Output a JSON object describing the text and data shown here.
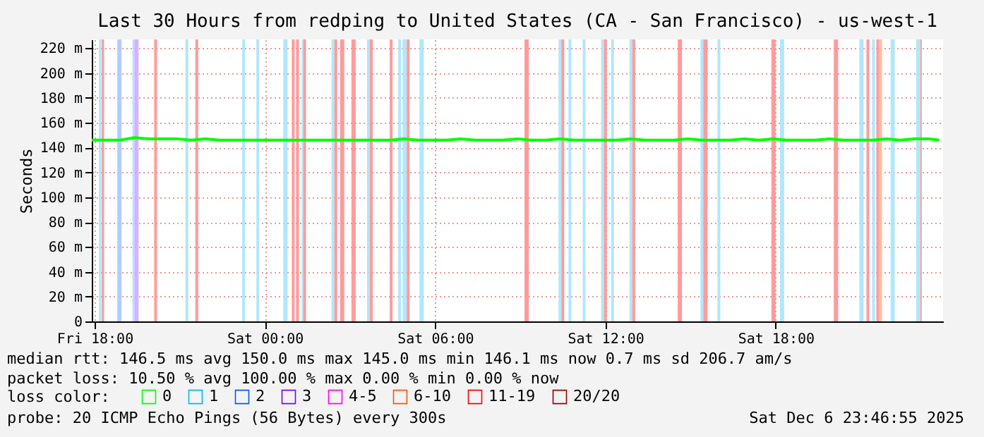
{
  "chart_data": {
    "type": "line",
    "title": "Last 30 Hours from redping to United States (CA - San Francisco) - us-west-1",
    "ylabel": "Seconds",
    "x": [
      "2025-12-05T17:54",
      "2025-12-05T18:24",
      "2025-12-05T18:54",
      "2025-12-05T19:24",
      "2025-12-05T19:54",
      "2025-12-05T20:24",
      "2025-12-05T20:54",
      "2025-12-05T21:24",
      "2025-12-05T21:54",
      "2025-12-05T22:24",
      "2025-12-05T22:54",
      "2025-12-05T23:24",
      "2025-12-05T23:54",
      "2025-12-06T00:24",
      "2025-12-06T00:54",
      "2025-12-06T01:24",
      "2025-12-06T01:54",
      "2025-12-06T02:24",
      "2025-12-06T02:54",
      "2025-12-06T03:24",
      "2025-12-06T03:54",
      "2025-12-06T04:24",
      "2025-12-06T04:54",
      "2025-12-06T05:24",
      "2025-12-06T05:54",
      "2025-12-06T06:24",
      "2025-12-06T06:54",
      "2025-12-06T07:24",
      "2025-12-06T07:54",
      "2025-12-06T08:24",
      "2025-12-06T08:54",
      "2025-12-06T09:24",
      "2025-12-06T09:54",
      "2025-12-06T10:24",
      "2025-12-06T10:54",
      "2025-12-06T11:24",
      "2025-12-06T11:54",
      "2025-12-06T12:24",
      "2025-12-06T12:54",
      "2025-12-06T13:24",
      "2025-12-06T13:54",
      "2025-12-06T14:24",
      "2025-12-06T14:54",
      "2025-12-06T15:24",
      "2025-12-06T15:54",
      "2025-12-06T16:24",
      "2025-12-06T16:54",
      "2025-12-06T17:24",
      "2025-12-06T17:54",
      "2025-12-06T18:24",
      "2025-12-06T18:54",
      "2025-12-06T19:24",
      "2025-12-06T19:54",
      "2025-12-06T20:24",
      "2025-12-06T20:54",
      "2025-12-06T21:24",
      "2025-12-06T21:54",
      "2025-12-06T22:24",
      "2025-12-06T22:54",
      "2025-12-06T23:24",
      "2025-12-06T23:46"
    ],
    "series": [
      {
        "name": "0",
        "color": "#00ff00",
        "values": [
          146,
          146,
          146,
          148,
          147,
          147,
          147,
          146,
          147,
          146,
          146,
          146,
          146,
          146,
          146,
          146,
          146,
          146,
          146,
          146,
          146,
          146,
          147,
          146,
          146,
          146,
          147,
          146,
          146,
          146,
          147,
          146,
          146,
          147,
          146,
          146,
          146,
          146,
          147,
          146,
          146,
          146,
          147,
          146,
          146,
          146,
          147,
          146,
          147,
          146,
          146,
          146,
          147,
          146,
          146,
          146,
          147,
          146,
          147,
          147,
          146
        ]
      },
      {
        "name": "1",
        "color": "#00b8ff",
        "values": [
          null,
          null,
          null,
          null,
          null,
          null,
          null,
          null,
          null,
          null,
          null,
          null,
          null,
          null,
          null,
          null,
          null,
          null,
          null,
          null,
          null,
          null,
          null,
          null,
          null,
          null,
          null,
          null,
          null,
          null,
          null,
          null,
          null,
          null,
          null,
          null,
          null,
          null,
          null,
          null,
          null,
          null,
          null,
          null,
          null,
          null,
          null,
          null,
          null,
          null,
          null,
          null,
          null,
          null,
          null,
          null,
          null,
          null,
          null,
          null,
          null
        ]
      },
      {
        "name": "2",
        "color": "#0059ff",
        "values": [
          null,
          null,
          null,
          null,
          null,
          null,
          null,
          null,
          null,
          null,
          null,
          null,
          null,
          null,
          null,
          null,
          null,
          null,
          null,
          null,
          null,
          null,
          null,
          null,
          null,
          null,
          null,
          null,
          null,
          null,
          null,
          null,
          null,
          null,
          null,
          null,
          null,
          null,
          null,
          null,
          null,
          null,
          null,
          null,
          null,
          null,
          null,
          null,
          null,
          null,
          null,
          null,
          null,
          null,
          null,
          null,
          null,
          null,
          null,
          null,
          null
        ]
      },
      {
        "name": "3",
        "color": "#7e00ff",
        "values": [
          null,
          null,
          null,
          null,
          null,
          null,
          null,
          null,
          null,
          null,
          null,
          null,
          null,
          null,
          null,
          null,
          null,
          null,
          null,
          null,
          null,
          null,
          null,
          null,
          null,
          null,
          null,
          null,
          null,
          null,
          null,
          null,
          null,
          null,
          null,
          null,
          null,
          null,
          null,
          null,
          null,
          null,
          null,
          null,
          null,
          null,
          null,
          null,
          null,
          null,
          null,
          null,
          null,
          null,
          null,
          null,
          null,
          null,
          null,
          null,
          null
        ]
      },
      {
        "name": "4-5",
        "color": "#ff00ff",
        "values": [
          null,
          null,
          null,
          null,
          null,
          null,
          null,
          null,
          null,
          null,
          null,
          null,
          null,
          null,
          null,
          null,
          null,
          null,
          null,
          null,
          null,
          null,
          null,
          null,
          null,
          null,
          null,
          null,
          null,
          null,
          null,
          null,
          null,
          null,
          null,
          null,
          null,
          null,
          null,
          null,
          null,
          null,
          null,
          null,
          null,
          null,
          null,
          null,
          null,
          null,
          null,
          null,
          null,
          null,
          null,
          null,
          null,
          null,
          null,
          null,
          null
        ]
      },
      {
        "name": "6-10",
        "color": "#ff5500",
        "values": [
          null,
          null,
          null,
          null,
          null,
          null,
          null,
          null,
          null,
          null,
          null,
          null,
          null,
          null,
          null,
          null,
          null,
          null,
          null,
          null,
          null,
          null,
          null,
          null,
          null,
          null,
          null,
          null,
          null,
          null,
          null,
          null,
          null,
          null,
          null,
          null,
          null,
          null,
          null,
          null,
          null,
          null,
          null,
          null,
          null,
          null,
          null,
          null,
          null,
          null,
          null,
          null,
          null,
          null,
          null,
          null,
          null,
          null,
          null,
          null,
          null
        ]
      },
      {
        "name": "11-19",
        "color": "#ff0000",
        "values": [
          null,
          null,
          null,
          null,
          null,
          null,
          null,
          null,
          null,
          null,
          null,
          null,
          null,
          null,
          null,
          null,
          null,
          null,
          null,
          null,
          null,
          null,
          null,
          null,
          null,
          null,
          null,
          null,
          null,
          null,
          null,
          null,
          null,
          null,
          null,
          null,
          null,
          null,
          null,
          null,
          null,
          null,
          null,
          null,
          null,
          null,
          null,
          null,
          null,
          null,
          null,
          null,
          null,
          null,
          null,
          null,
          null,
          null,
          null,
          null,
          null
        ]
      },
      {
        "name": "20/20",
        "color": "#a10000",
        "values": [
          null,
          null,
          null,
          null,
          null,
          null,
          null,
          null,
          null,
          null,
          null,
          null,
          null,
          null,
          null,
          null,
          null,
          null,
          null,
          null,
          null,
          null,
          null,
          null,
          null,
          null,
          null,
          null,
          null,
          null,
          null,
          null,
          null,
          null,
          null,
          null,
          null,
          null,
          null,
          null,
          null,
          null,
          null,
          null,
          null,
          null,
          null,
          null,
          null,
          null,
          null,
          null,
          null,
          null,
          null,
          null,
          null,
          null,
          null,
          null,
          null
        ]
      }
    ],
    "legend": "bottom",
    "legend_title": "loss color:",
    "xlim": [
      "2025-12-05T17:54",
      "2025-12-06T23:54"
    ],
    "xticks": [
      {
        "value": "2025-12-05T18:00",
        "label": "Fri 18:00"
      },
      {
        "value": "2025-12-06T00:00",
        "label": "Sat 00:00"
      },
      {
        "value": "2025-12-06T06:00",
        "label": "Sat 06:00"
      },
      {
        "value": "2025-12-06T12:00",
        "label": "Sat 12:00"
      },
      {
        "value": "2025-12-06T18:00",
        "label": "Sat 18:00"
      }
    ],
    "ylim": [
      0,
      227
    ],
    "yticks": [
      0,
      {
        "value": 20,
        "label": "20 m"
      },
      {
        "value": 40,
        "label": "40 m"
      },
      {
        "value": 60,
        "label": "60 m"
      },
      {
        "value": 80,
        "label": "80 m"
      },
      {
        "value": 100,
        "label": "100 m"
      },
      {
        "value": 120,
        "label": "120 m"
      },
      {
        "value": 140,
        "label": "140 m"
      },
      {
        "value": 160,
        "label": "160 m"
      },
      {
        "value": 180,
        "label": "180 m"
      },
      {
        "value": 200,
        "label": "200 m"
      },
      {
        "value": 220,
        "label": "220 m"
      }
    ],
    "grid": true,
    "line_style": "solid",
    "bands": [
      {
        "axis": "x",
        "from": "2025-12-05T18:09",
        "to": "2025-12-05T18:14",
        "color": "#a8e4f8"
      },
      {
        "axis": "x",
        "from": "2025-12-05T18:15",
        "to": "2025-12-05T18:20",
        "color": "#ff9090"
      },
      {
        "axis": "x",
        "from": "2025-12-05T18:48",
        "to": "2025-12-05T18:57",
        "color": "#a8c8ff"
      },
      {
        "axis": "x",
        "from": "2025-12-05T19:20",
        "to": "2025-12-05T19:24",
        "color": "#a8e4f8"
      },
      {
        "axis": "x",
        "from": "2025-12-05T19:24",
        "to": "2025-12-05T19:33",
        "color": "#d0a8ff"
      },
      {
        "axis": "x",
        "from": "2025-12-05T20:06",
        "to": "2025-12-05T20:12",
        "color": "#ff9090"
      },
      {
        "axis": "x",
        "from": "2025-12-05T21:12",
        "to": "2025-12-05T21:18",
        "color": "#a8e4f8"
      },
      {
        "axis": "x",
        "from": "2025-12-05T21:33",
        "to": "2025-12-05T21:39",
        "color": "#ff9090"
      },
      {
        "axis": "x",
        "from": "2025-12-05T23:12",
        "to": "2025-12-05T23:18",
        "color": "#a8e4f8"
      },
      {
        "axis": "x",
        "from": "2025-12-05T23:42",
        "to": "2025-12-05T23:48",
        "color": "#a8e4f8"
      },
      {
        "axis": "x",
        "from": "2025-12-06T00:39",
        "to": "2025-12-06T00:48",
        "color": "#a8e4f8"
      },
      {
        "axis": "x",
        "from": "2025-12-06T00:57",
        "to": "2025-12-06T01:03",
        "color": "#ff9090"
      },
      {
        "axis": "x",
        "from": "2025-12-06T01:06",
        "to": "2025-12-06T01:12",
        "color": "#ff9090"
      },
      {
        "axis": "x",
        "from": "2025-12-06T01:18",
        "to": "2025-12-06T01:21",
        "color": "#a8e4f8"
      },
      {
        "axis": "x",
        "from": "2025-12-06T01:21",
        "to": "2025-12-06T01:27",
        "color": "#ff9090"
      },
      {
        "axis": "x",
        "from": "2025-12-06T02:21",
        "to": "2025-12-06T02:27",
        "color": "#a8e4f8"
      },
      {
        "axis": "x",
        "from": "2025-12-06T02:27",
        "to": "2025-12-06T02:33",
        "color": "#ff9090"
      },
      {
        "axis": "x",
        "from": "2025-12-06T02:39",
        "to": "2025-12-06T02:48",
        "color": "#ff9090"
      },
      {
        "axis": "x",
        "from": "2025-12-06T03:03",
        "to": "2025-12-06T03:12",
        "color": "#ff9090"
      },
      {
        "axis": "x",
        "from": "2025-12-06T03:36",
        "to": "2025-12-06T03:42",
        "color": "#a8e4f8"
      },
      {
        "axis": "x",
        "from": "2025-12-06T03:42",
        "to": "2025-12-06T03:48",
        "color": "#ff9090"
      },
      {
        "axis": "x",
        "from": "2025-12-06T04:24",
        "to": "2025-12-06T04:30",
        "color": "#ff9090"
      },
      {
        "axis": "x",
        "from": "2025-12-06T04:42",
        "to": "2025-12-06T04:48",
        "color": "#a8e4f8"
      },
      {
        "axis": "x",
        "from": "2025-12-06T04:51",
        "to": "2025-12-06T05:00",
        "color": "#a8e4f8"
      },
      {
        "axis": "x",
        "from": "2025-12-06T05:00",
        "to": "2025-12-06T05:06",
        "color": "#ff9090"
      },
      {
        "axis": "x",
        "from": "2025-12-06T05:27",
        "to": "2025-12-06T05:36",
        "color": "#a8e4f8"
      },
      {
        "axis": "x",
        "from": "2025-12-06T09:09",
        "to": "2025-12-06T09:18",
        "color": "#ff9090"
      },
      {
        "axis": "x",
        "from": "2025-12-06T10:21",
        "to": "2025-12-06T10:27",
        "color": "#a8e4f8"
      },
      {
        "axis": "x",
        "from": "2025-12-06T10:27",
        "to": "2025-12-06T10:33",
        "color": "#ff9090"
      },
      {
        "axis": "x",
        "from": "2025-12-06T10:42",
        "to": "2025-12-06T10:48",
        "color": "#a8e4f8"
      },
      {
        "axis": "x",
        "from": "2025-12-06T11:12",
        "to": "2025-12-06T11:18",
        "color": "#a8e4f8"
      },
      {
        "axis": "x",
        "from": "2025-12-06T11:51",
        "to": "2025-12-06T11:57",
        "color": "#a8e4f8"
      },
      {
        "axis": "x",
        "from": "2025-12-06T11:57",
        "to": "2025-12-06T12:03",
        "color": "#ff9090"
      },
      {
        "axis": "x",
        "from": "2025-12-06T12:12",
        "to": "2025-12-06T12:18",
        "color": "#a8e4f8"
      },
      {
        "axis": "x",
        "from": "2025-12-06T12:51",
        "to": "2025-12-06T12:57",
        "color": "#a8e4f8"
      },
      {
        "axis": "x",
        "from": "2025-12-06T12:57",
        "to": "2025-12-06T13:03",
        "color": "#ff9090"
      },
      {
        "axis": "x",
        "from": "2025-12-06T14:33",
        "to": "2025-12-06T14:42",
        "color": "#ff9090"
      },
      {
        "axis": "x",
        "from": "2025-12-06T15:21",
        "to": "2025-12-06T15:27",
        "color": "#a8e4f8"
      },
      {
        "axis": "x",
        "from": "2025-12-06T15:27",
        "to": "2025-12-06T15:36",
        "color": "#ff9090"
      },
      {
        "axis": "x",
        "from": "2025-12-06T15:57",
        "to": "2025-12-06T16:03",
        "color": "#a8e4f8"
      },
      {
        "axis": "x",
        "from": "2025-12-06T17:51",
        "to": "2025-12-06T18:00",
        "color": "#ff9090"
      },
      {
        "axis": "x",
        "from": "2025-12-06T18:09",
        "to": "2025-12-06T18:18",
        "color": "#a8e4f8"
      },
      {
        "axis": "x",
        "from": "2025-12-06T20:03",
        "to": "2025-12-06T20:12",
        "color": "#ff9090"
      },
      {
        "axis": "x",
        "from": "2025-12-06T20:57",
        "to": "2025-12-06T21:06",
        "color": "#a8e4f8"
      },
      {
        "axis": "x",
        "from": "2025-12-06T21:12",
        "to": "2025-12-06T21:18",
        "color": "#ff9090"
      },
      {
        "axis": "x",
        "from": "2025-12-06T21:24",
        "to": "2025-12-06T21:30",
        "color": "#a8e4f8"
      },
      {
        "axis": "x",
        "from": "2025-12-06T21:33",
        "to": "2025-12-06T21:39",
        "color": "#ff9090"
      },
      {
        "axis": "x",
        "from": "2025-12-06T21:39",
        "to": "2025-12-06T21:45",
        "color": "#ffb898"
      },
      {
        "axis": "x",
        "from": "2025-12-06T22:03",
        "to": "2025-12-06T22:12",
        "color": "#a8e4f8"
      },
      {
        "axis": "x",
        "from": "2025-12-06T22:57",
        "to": "2025-12-06T23:06",
        "color": "#a8e4f8"
      },
      {
        "axis": "x",
        "from": "2025-12-06T23:06",
        "to": "2025-12-06T23:09",
        "color": "#ff9090"
      }
    ],
    "annotations": [
      "median rtt:  146.5 ms avg  150.0 ms max  145.0 ms min  146.1 ms now  0.7 ms sd  206.7  am/s",
      "packet loss: 10.50 % avg  100.00 % max  0.00 % min  0.00 % now",
      "probe:       20 ICMP Echo Pings (56 Bytes) every 300s",
      "Sat Dec  6 23:46:55 2025"
    ]
  }
}
